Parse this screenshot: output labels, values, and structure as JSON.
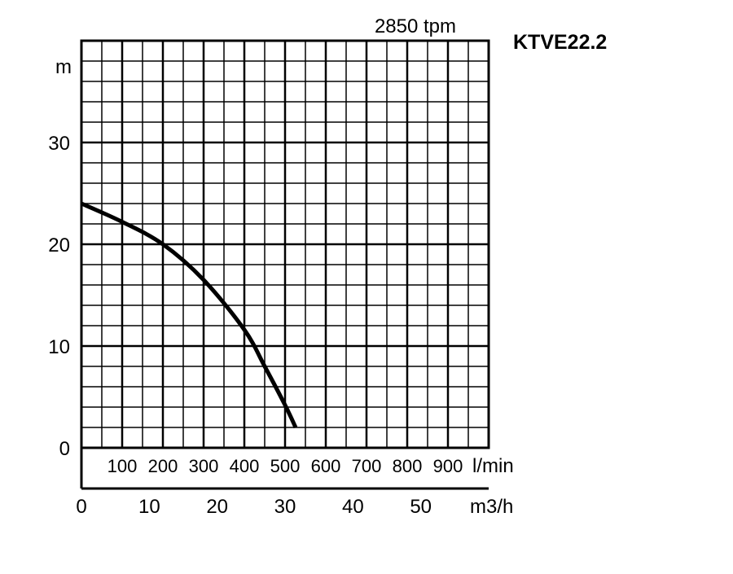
{
  "chart_data": {
    "type": "line",
    "title": "KTVE22.2",
    "subtitle": "2850 tpm",
    "ylabel": "m",
    "ylim": [
      0,
      40
    ],
    "yticks": [
      0,
      10,
      20,
      30
    ],
    "xlabel_primary": "l/min",
    "xlim_primary": [
      0,
      1000
    ],
    "xticks_primary": [
      100,
      200,
      300,
      400,
      500,
      600,
      700,
      800,
      900
    ],
    "xlabel_secondary": "m3/h",
    "xlim_secondary": [
      0,
      60
    ],
    "xticks_secondary": [
      0,
      10,
      20,
      30,
      40,
      50
    ],
    "grid": true,
    "series": [
      {
        "name": "KTVE22.2",
        "x_lmin": [
          0,
          100,
          200,
          300,
          400,
          450,
          500,
          526
        ],
        "y_m": [
          24,
          22.2,
          20,
          16.5,
          11.6,
          8,
          4.2,
          2
        ]
      }
    ]
  }
}
